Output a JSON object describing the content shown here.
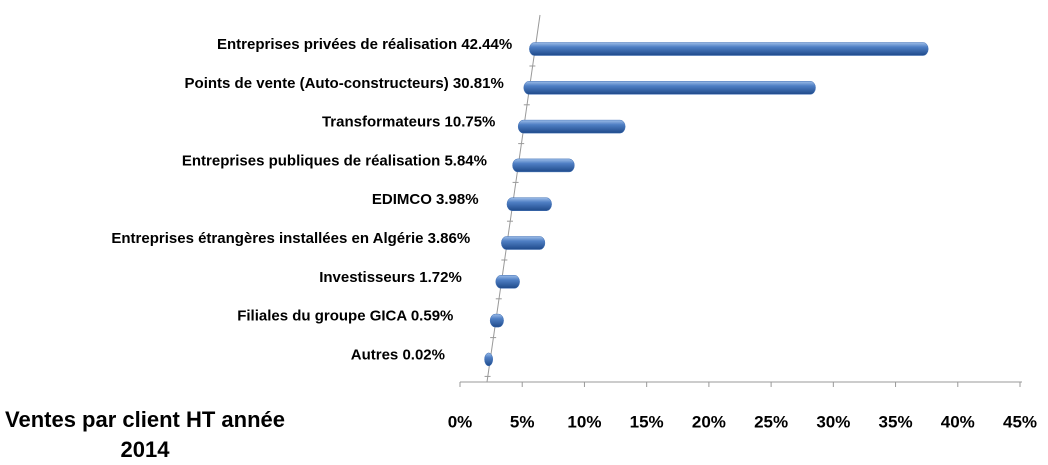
{
  "chart_data": {
    "type": "bar",
    "orientation": "horizontal",
    "title": "Ventes par client HT année 2014",
    "categories": [
      "Entreprises privées de réalisation",
      "Points de vente (Auto-constructeurs)",
      "Transformateurs",
      "Entreprises publiques de réalisation",
      "EDIMCO",
      "Entreprises  étrangères installées en Algérie",
      "Investisseurs",
      "Filiales du groupe GICA",
      "Autres"
    ],
    "values": [
      42.44,
      30.81,
      10.75,
      5.84,
      3.98,
      3.86,
      1.72,
      0.59,
      0.02
    ],
    "value_labels": [
      "42.44%",
      "30.81%",
      "10.75%",
      "5.84%",
      "3.98%",
      "3.86%",
      "1.72%",
      "0.59%",
      "0.02%"
    ],
    "color": "#3f6fb5",
    "xlim": [
      0,
      45
    ],
    "xticks": [
      {
        "value": 0,
        "label": "0%"
      },
      {
        "value": 5,
        "label": "5%"
      },
      {
        "value": 10,
        "label": "10%"
      },
      {
        "value": 15,
        "label": "15%"
      },
      {
        "value": 20,
        "label": "20%"
      },
      {
        "value": 25,
        "label": "25%"
      },
      {
        "value": 30,
        "label": "30%"
      },
      {
        "value": 35,
        "label": "35%"
      },
      {
        "value": 40,
        "label": "40%"
      },
      {
        "value": 45,
        "label": "45%"
      }
    ]
  }
}
